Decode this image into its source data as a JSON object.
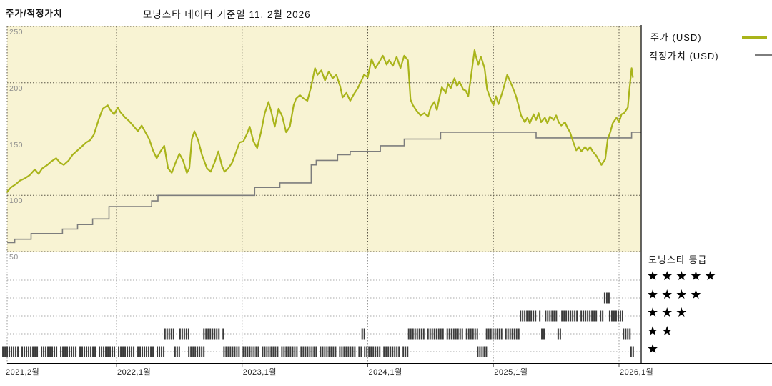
{
  "header": {
    "label": "주가/적정가치",
    "title": "모닝스타 데이터 기준일 11. 2월 2026"
  },
  "legend": {
    "price_label": "주가 (USD)",
    "fair_value_label": "적정가치 (USD)",
    "price_color": "#a9b41a",
    "fair_value_color": "#7d7d7d"
  },
  "rating_legend": {
    "title": "모닝스타 등급",
    "star": "★",
    "rows": [
      5,
      4,
      3,
      2,
      1
    ]
  },
  "chart_data": {
    "type": "line",
    "title": "모닝스타 데이터 기준일 11. 2월 2026",
    "ylabel": "USD",
    "y_ticks": [
      250,
      200,
      150,
      100,
      50
    ],
    "y_range": [
      50,
      250
    ],
    "x_range": [
      2021.09,
      2026.18
    ],
    "x_grid_years": [
      2022,
      2023,
      2024,
      2025,
      2026
    ],
    "x_ticks": [
      {
        "label": "2021,2월",
        "year": 2021.083
      },
      {
        "label": "2022,1월",
        "year": 2022.0
      },
      {
        "label": "2023,1월",
        "year": 2023.0
      },
      {
        "label": "2024,1월",
        "year": 2024.0
      },
      {
        "label": "2025,1월",
        "year": 2025.0
      },
      {
        "label": "2026,1월",
        "year": 2026.0
      }
    ],
    "grid": true,
    "legend_position": "right",
    "plot_bg": "#f8f3d3",
    "series": [
      {
        "name": "주가 (USD)",
        "color": "#a9b41a",
        "style": "line",
        "points": [
          [
            2021.13,
            103
          ],
          [
            2021.16,
            107
          ],
          [
            2021.2,
            110
          ],
          [
            2021.23,
            113
          ],
          [
            2021.27,
            115
          ],
          [
            2021.31,
            118
          ],
          [
            2021.35,
            123
          ],
          [
            2021.38,
            119
          ],
          [
            2021.41,
            124
          ],
          [
            2021.45,
            127
          ],
          [
            2021.48,
            130
          ],
          [
            2021.52,
            133
          ],
          [
            2021.55,
            129
          ],
          [
            2021.58,
            127
          ],
          [
            2021.62,
            131
          ],
          [
            2021.65,
            136
          ],
          [
            2021.69,
            140
          ],
          [
            2021.72,
            143
          ],
          [
            2021.76,
            147
          ],
          [
            2021.79,
            149
          ],
          [
            2021.82,
            154
          ],
          [
            2021.86,
            168
          ],
          [
            2021.89,
            177
          ],
          [
            2021.93,
            180
          ],
          [
            2021.95,
            176
          ],
          [
            2021.98,
            172
          ],
          [
            2022.01,
            178
          ],
          [
            2022.03,
            174
          ],
          [
            2022.07,
            169
          ],
          [
            2022.1,
            166
          ],
          [
            2022.14,
            161
          ],
          [
            2022.17,
            157
          ],
          [
            2022.2,
            162
          ],
          [
            2022.23,
            156
          ],
          [
            2022.26,
            150
          ],
          [
            2022.29,
            140
          ],
          [
            2022.32,
            133
          ],
          [
            2022.35,
            139
          ],
          [
            2022.38,
            144
          ],
          [
            2022.41,
            124
          ],
          [
            2022.44,
            120
          ],
          [
            2022.47,
            129
          ],
          [
            2022.5,
            137
          ],
          [
            2022.53,
            131
          ],
          [
            2022.56,
            120
          ],
          [
            2022.58,
            124
          ],
          [
            2022.6,
            150
          ],
          [
            2022.62,
            157
          ],
          [
            2022.65,
            149
          ],
          [
            2022.68,
            136
          ],
          [
            2022.72,
            124
          ],
          [
            2022.75,
            121
          ],
          [
            2022.78,
            129
          ],
          [
            2022.81,
            139
          ],
          [
            2022.84,
            126
          ],
          [
            2022.86,
            121
          ],
          [
            2022.89,
            124
          ],
          [
            2022.92,
            129
          ],
          [
            2022.95,
            138
          ],
          [
            2022.98,
            147
          ],
          [
            2023.01,
            148
          ],
          [
            2023.04,
            155
          ],
          [
            2023.06,
            161
          ],
          [
            2023.09,
            148
          ],
          [
            2023.12,
            142
          ],
          [
            2023.15,
            156
          ],
          [
            2023.18,
            173
          ],
          [
            2023.21,
            183
          ],
          [
            2023.23,
            175
          ],
          [
            2023.26,
            161
          ],
          [
            2023.29,
            177
          ],
          [
            2023.32,
            170
          ],
          [
            2023.35,
            156
          ],
          [
            2023.38,
            161
          ],
          [
            2023.41,
            180
          ],
          [
            2023.43,
            186
          ],
          [
            2023.46,
            189
          ],
          [
            2023.49,
            186
          ],
          [
            2023.52,
            184
          ],
          [
            2023.55,
            197
          ],
          [
            2023.58,
            213
          ],
          [
            2023.6,
            207
          ],
          [
            2023.63,
            211
          ],
          [
            2023.66,
            202
          ],
          [
            2023.69,
            210
          ],
          [
            2023.72,
            204
          ],
          [
            2023.75,
            207
          ],
          [
            2023.78,
            197
          ],
          [
            2023.8,
            187
          ],
          [
            2023.83,
            191
          ],
          [
            2023.86,
            184
          ],
          [
            2023.89,
            190
          ],
          [
            2023.92,
            195
          ],
          [
            2023.95,
            202
          ],
          [
            2023.97,
            207
          ],
          [
            2024.0,
            205
          ],
          [
            2024.03,
            221
          ],
          [
            2024.06,
            213
          ],
          [
            2024.09,
            218
          ],
          [
            2024.12,
            224
          ],
          [
            2024.15,
            216
          ],
          [
            2024.17,
            220
          ],
          [
            2024.2,
            215
          ],
          [
            2024.23,
            223
          ],
          [
            2024.26,
            213
          ],
          [
            2024.29,
            224
          ],
          [
            2024.32,
            220
          ],
          [
            2024.34,
            185
          ],
          [
            2024.36,
            180
          ],
          [
            2024.39,
            175
          ],
          [
            2024.42,
            171
          ],
          [
            2024.45,
            173
          ],
          [
            2024.48,
            170
          ],
          [
            2024.5,
            178
          ],
          [
            2024.53,
            183
          ],
          [
            2024.55,
            176
          ],
          [
            2024.57,
            187
          ],
          [
            2024.59,
            196
          ],
          [
            2024.62,
            191
          ],
          [
            2024.64,
            199
          ],
          [
            2024.66,
            195
          ],
          [
            2024.69,
            204
          ],
          [
            2024.71,
            197
          ],
          [
            2024.73,
            201
          ],
          [
            2024.76,
            194
          ],
          [
            2024.78,
            193
          ],
          [
            2024.8,
            188
          ],
          [
            2024.82,
            204
          ],
          [
            2024.85,
            229
          ],
          [
            2024.86,
            224
          ],
          [
            2024.88,
            216
          ],
          [
            2024.9,
            223
          ],
          [
            2024.91,
            220
          ],
          [
            2024.93,
            213
          ],
          [
            2024.95,
            194
          ],
          [
            2024.98,
            185
          ],
          [
            2025.0,
            180
          ],
          [
            2025.02,
            188
          ],
          [
            2025.04,
            181
          ],
          [
            2025.07,
            191
          ],
          [
            2025.09,
            199
          ],
          [
            2025.11,
            207
          ],
          [
            2025.13,
            202
          ],
          [
            2025.16,
            194
          ],
          [
            2025.18,
            188
          ],
          [
            2025.2,
            180
          ],
          [
            2025.22,
            171
          ],
          [
            2025.25,
            165
          ],
          [
            2025.27,
            169
          ],
          [
            2025.29,
            164
          ],
          [
            2025.32,
            172
          ],
          [
            2025.34,
            167
          ],
          [
            2025.36,
            173
          ],
          [
            2025.38,
            165
          ],
          [
            2025.41,
            169
          ],
          [
            2025.43,
            164
          ],
          [
            2025.45,
            170
          ],
          [
            2025.48,
            167
          ],
          [
            2025.5,
            171
          ],
          [
            2025.52,
            165
          ],
          [
            2025.54,
            162
          ],
          [
            2025.57,
            165
          ],
          [
            2025.59,
            160
          ],
          [
            2025.61,
            156
          ],
          [
            2025.64,
            146
          ],
          [
            2025.66,
            140
          ],
          [
            2025.68,
            143
          ],
          [
            2025.7,
            139
          ],
          [
            2025.73,
            143
          ],
          [
            2025.75,
            140
          ],
          [
            2025.77,
            143
          ],
          [
            2025.79,
            139
          ],
          [
            2025.82,
            135
          ],
          [
            2025.84,
            131
          ],
          [
            2025.86,
            127
          ],
          [
            2025.89,
            132
          ],
          [
            2025.91,
            150
          ],
          [
            2025.93,
            156
          ],
          [
            2025.95,
            164
          ],
          [
            2025.98,
            169
          ],
          [
            2026.0,
            165
          ],
          [
            2026.02,
            172
          ],
          [
            2026.04,
            173
          ],
          [
            2026.07,
            178
          ],
          [
            2026.08,
            191
          ],
          [
            2026.1,
            213
          ],
          [
            2026.11,
            205
          ]
        ]
      },
      {
        "name": "적정가치 (USD)",
        "color": "#7d7d7d",
        "style": "step",
        "points": [
          [
            2021.13,
            58
          ],
          [
            2021.19,
            61
          ],
          [
            2021.32,
            66
          ],
          [
            2021.57,
            70
          ],
          [
            2021.69,
            74
          ],
          [
            2021.81,
            79
          ],
          [
            2021.94,
            90
          ],
          [
            2022.28,
            95
          ],
          [
            2022.33,
            100
          ],
          [
            2023.1,
            107
          ],
          [
            2023.3,
            111
          ],
          [
            2023.55,
            127
          ],
          [
            2023.59,
            131
          ],
          [
            2023.76,
            136
          ],
          [
            2023.86,
            139
          ],
          [
            2024.1,
            144
          ],
          [
            2024.29,
            150
          ],
          [
            2024.58,
            156
          ],
          [
            2025.34,
            151
          ],
          [
            2026.1,
            156
          ]
        ]
      }
    ],
    "rating_series": {
      "name": "모닝스타 등급",
      "levels": [
        1,
        2,
        3,
        4,
        5
      ],
      "segments": [
        [
          2021.09,
          2022.38,
          1
        ],
        [
          2022.38,
          2022.46,
          2
        ],
        [
          2022.46,
          2022.5,
          1
        ],
        [
          2022.5,
          2022.57,
          2
        ],
        [
          2022.57,
          2022.69,
          1
        ],
        [
          2022.69,
          2022.85,
          2
        ],
        [
          2022.85,
          2023.95,
          1
        ],
        [
          2023.95,
          2023.97,
          2
        ],
        [
          2023.97,
          2024.32,
          1
        ],
        [
          2024.32,
          2024.87,
          2
        ],
        [
          2024.87,
          2024.94,
          1
        ],
        [
          2024.94,
          2025.21,
          2
        ],
        [
          2025.21,
          2025.38,
          3
        ],
        [
          2025.38,
          2025.41,
          2
        ],
        [
          2025.41,
          2025.51,
          3
        ],
        [
          2025.51,
          2025.54,
          2
        ],
        [
          2025.54,
          2025.88,
          3
        ],
        [
          2025.88,
          2025.92,
          4
        ],
        [
          2025.92,
          2026.03,
          3
        ],
        [
          2026.03,
          2026.09,
          2
        ],
        [
          2026.09,
          2026.11,
          1
        ]
      ]
    }
  }
}
